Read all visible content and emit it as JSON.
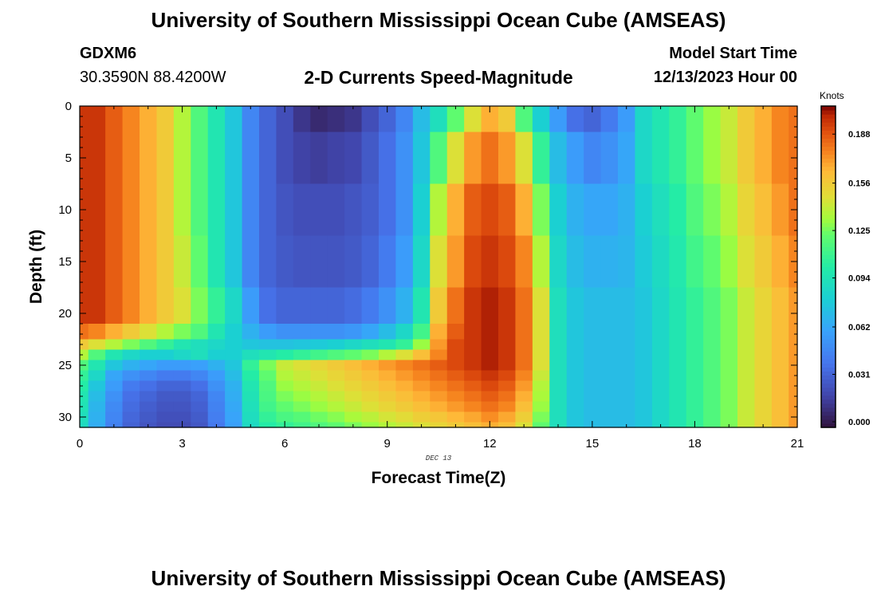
{
  "header": {
    "title": "University of Southern Mississippi Ocean Cube (AMSEAS)",
    "station_id": "GDXM6",
    "coordinates": "30.3590N  88.4200W",
    "plot_title": "2-D Currents Speed-Magnitude",
    "start_label": "Model Start Time",
    "start_value": "12/13/2023 Hour 00"
  },
  "footer": {
    "title": "University of Southern Mississippi Ocean Cube (AMSEAS)"
  },
  "chart_data": {
    "type": "heatmap",
    "title": "2-D Currents Speed-Magnitude",
    "xlabel": "Forecast Time(Z)",
    "ylabel": "Depth (ft)",
    "date_label": "DEC 13",
    "xlim": [
      0,
      21
    ],
    "ylim": [
      31,
      0
    ],
    "x_ticks": [
      "0",
      "3",
      "6",
      "9",
      "12",
      "15",
      "18",
      "21"
    ],
    "y_ticks": [
      "0",
      "5",
      "10",
      "15",
      "20",
      "25",
      "30"
    ],
    "colorbar": {
      "unit": "Knots",
      "ticks": [
        "0.000",
        "0.031",
        "0.062",
        "0.094",
        "0.125",
        "0.156",
        "0.188"
      ],
      "min": 0.0,
      "max": 0.21
    },
    "x_hours": [
      0,
      0.5,
      1,
      1.5,
      2,
      2.5,
      3,
      3.5,
      4,
      4.5,
      5,
      5.5,
      6,
      6.5,
      7,
      7.5,
      8,
      8.5,
      9,
      9.5,
      10,
      10.5,
      11,
      11.5,
      12,
      12.5,
      13,
      13.5,
      14,
      14.5,
      15,
      15.5,
      16,
      16.5,
      17,
      17.5,
      18,
      18.5,
      19,
      19.5,
      20,
      20.5,
      21
    ],
    "depth_ft": [
      0,
      5,
      10,
      15,
      20,
      22,
      23,
      24,
      25,
      26,
      27,
      28,
      29,
      30,
      31
    ],
    "speed_knots": [
      [
        0.2,
        0.2,
        0.19,
        0.18,
        0.17,
        0.16,
        0.14,
        0.12,
        0.1,
        0.08,
        0.05,
        0.035,
        0.025,
        0.015,
        0.01,
        0.012,
        0.015,
        0.025,
        0.035,
        0.05,
        0.075,
        0.095,
        0.125,
        0.15,
        0.17,
        0.16,
        0.12,
        0.085,
        0.06,
        0.04,
        0.035,
        0.045,
        0.06,
        0.09,
        0.1,
        0.11,
        0.125,
        0.135,
        0.145,
        0.16,
        0.17,
        0.18,
        0.185
      ],
      [
        0.2,
        0.2,
        0.19,
        0.18,
        0.17,
        0.16,
        0.14,
        0.12,
        0.1,
        0.08,
        0.05,
        0.035,
        0.025,
        0.02,
        0.018,
        0.02,
        0.022,
        0.03,
        0.04,
        0.055,
        0.08,
        0.12,
        0.15,
        0.175,
        0.185,
        0.175,
        0.15,
        0.11,
        0.075,
        0.06,
        0.05,
        0.055,
        0.065,
        0.09,
        0.1,
        0.11,
        0.125,
        0.135,
        0.145,
        0.16,
        0.17,
        0.18,
        0.185
      ],
      [
        0.2,
        0.2,
        0.19,
        0.18,
        0.17,
        0.16,
        0.14,
        0.12,
        0.1,
        0.08,
        0.05,
        0.035,
        0.028,
        0.025,
        0.025,
        0.025,
        0.028,
        0.032,
        0.04,
        0.055,
        0.085,
        0.14,
        0.17,
        0.19,
        0.195,
        0.19,
        0.17,
        0.13,
        0.085,
        0.07,
        0.065,
        0.065,
        0.07,
        0.085,
        0.095,
        0.105,
        0.12,
        0.13,
        0.14,
        0.155,
        0.165,
        0.175,
        0.185
      ],
      [
        0.2,
        0.2,
        0.19,
        0.18,
        0.17,
        0.16,
        0.145,
        0.125,
        0.1,
        0.08,
        0.05,
        0.035,
        0.03,
        0.028,
        0.028,
        0.028,
        0.03,
        0.035,
        0.045,
        0.06,
        0.09,
        0.15,
        0.175,
        0.195,
        0.2,
        0.195,
        0.18,
        0.14,
        0.09,
        0.075,
        0.07,
        0.07,
        0.072,
        0.082,
        0.092,
        0.102,
        0.115,
        0.125,
        0.135,
        0.15,
        0.16,
        0.17,
        0.18
      ],
      [
        0.2,
        0.2,
        0.19,
        0.18,
        0.17,
        0.16,
        0.15,
        0.13,
        0.11,
        0.09,
        0.06,
        0.04,
        0.035,
        0.035,
        0.035,
        0.035,
        0.038,
        0.045,
        0.055,
        0.07,
        0.1,
        0.16,
        0.185,
        0.2,
        0.205,
        0.2,
        0.185,
        0.15,
        0.095,
        0.08,
        0.075,
        0.075,
        0.075,
        0.08,
        0.09,
        0.1,
        0.11,
        0.12,
        0.13,
        0.145,
        0.155,
        0.165,
        0.175
      ],
      [
        0.185,
        0.18,
        0.17,
        0.16,
        0.15,
        0.14,
        0.13,
        0.12,
        0.1,
        0.085,
        0.07,
        0.06,
        0.055,
        0.055,
        0.055,
        0.055,
        0.058,
        0.065,
        0.075,
        0.09,
        0.115,
        0.17,
        0.19,
        0.2,
        0.205,
        0.2,
        0.185,
        0.15,
        0.095,
        0.08,
        0.075,
        0.075,
        0.075,
        0.08,
        0.09,
        0.1,
        0.11,
        0.12,
        0.13,
        0.145,
        0.155,
        0.165,
        0.175
      ],
      [
        0.16,
        0.15,
        0.14,
        0.13,
        0.12,
        0.11,
        0.1,
        0.095,
        0.09,
        0.085,
        0.08,
        0.078,
        0.078,
        0.08,
        0.082,
        0.085,
        0.09,
        0.095,
        0.1,
        0.11,
        0.135,
        0.175,
        0.195,
        0.2,
        0.205,
        0.2,
        0.185,
        0.15,
        0.095,
        0.08,
        0.075,
        0.075,
        0.075,
        0.08,
        0.09,
        0.1,
        0.11,
        0.12,
        0.13,
        0.145,
        0.155,
        0.165,
        0.175
      ],
      [
        0.14,
        0.12,
        0.1,
        0.09,
        0.085,
        0.085,
        0.09,
        0.095,
        0.085,
        0.085,
        0.095,
        0.1,
        0.105,
        0.11,
        0.115,
        0.12,
        0.125,
        0.13,
        0.14,
        0.15,
        0.165,
        0.18,
        0.195,
        0.2,
        0.205,
        0.2,
        0.185,
        0.15,
        0.095,
        0.08,
        0.075,
        0.075,
        0.075,
        0.08,
        0.09,
        0.1,
        0.11,
        0.12,
        0.13,
        0.145,
        0.155,
        0.165,
        0.175
      ],
      [
        0.12,
        0.1,
        0.08,
        0.07,
        0.065,
        0.06,
        0.06,
        0.062,
        0.07,
        0.08,
        0.11,
        0.13,
        0.145,
        0.15,
        0.155,
        0.16,
        0.165,
        0.17,
        0.175,
        0.18,
        0.185,
        0.19,
        0.195,
        0.2,
        0.205,
        0.2,
        0.185,
        0.15,
        0.095,
        0.08,
        0.075,
        0.075,
        0.075,
        0.08,
        0.09,
        0.1,
        0.11,
        0.12,
        0.13,
        0.145,
        0.155,
        0.165,
        0.175
      ],
      [
        0.11,
        0.09,
        0.065,
        0.055,
        0.05,
        0.045,
        0.045,
        0.05,
        0.06,
        0.075,
        0.105,
        0.125,
        0.14,
        0.145,
        0.15,
        0.155,
        0.16,
        0.165,
        0.17,
        0.175,
        0.18,
        0.185,
        0.19,
        0.195,
        0.2,
        0.195,
        0.18,
        0.145,
        0.095,
        0.08,
        0.075,
        0.075,
        0.075,
        0.08,
        0.09,
        0.1,
        0.11,
        0.12,
        0.13,
        0.145,
        0.155,
        0.165,
        0.175
      ],
      [
        0.105,
        0.08,
        0.06,
        0.045,
        0.04,
        0.035,
        0.035,
        0.04,
        0.055,
        0.07,
        0.1,
        0.12,
        0.135,
        0.14,
        0.145,
        0.15,
        0.155,
        0.16,
        0.165,
        0.17,
        0.175,
        0.18,
        0.185,
        0.19,
        0.195,
        0.19,
        0.175,
        0.14,
        0.095,
        0.08,
        0.075,
        0.075,
        0.075,
        0.08,
        0.09,
        0.1,
        0.11,
        0.12,
        0.13,
        0.145,
        0.155,
        0.165,
        0.175
      ],
      [
        0.1,
        0.075,
        0.055,
        0.04,
        0.035,
        0.03,
        0.03,
        0.035,
        0.05,
        0.068,
        0.098,
        0.118,
        0.13,
        0.135,
        0.14,
        0.145,
        0.15,
        0.155,
        0.16,
        0.165,
        0.17,
        0.175,
        0.18,
        0.185,
        0.19,
        0.185,
        0.17,
        0.138,
        0.095,
        0.08,
        0.075,
        0.075,
        0.075,
        0.08,
        0.09,
        0.1,
        0.11,
        0.12,
        0.13,
        0.145,
        0.155,
        0.165,
        0.175
      ],
      [
        0.098,
        0.072,
        0.052,
        0.038,
        0.032,
        0.028,
        0.028,
        0.033,
        0.048,
        0.066,
        0.096,
        0.115,
        0.125,
        0.13,
        0.135,
        0.14,
        0.145,
        0.15,
        0.155,
        0.16,
        0.165,
        0.17,
        0.175,
        0.18,
        0.185,
        0.18,
        0.165,
        0.135,
        0.095,
        0.08,
        0.075,
        0.075,
        0.075,
        0.08,
        0.09,
        0.1,
        0.11,
        0.12,
        0.13,
        0.145,
        0.155,
        0.165,
        0.175
      ],
      [
        0.095,
        0.07,
        0.05,
        0.036,
        0.03,
        0.026,
        0.026,
        0.031,
        0.046,
        0.064,
        0.094,
        0.11,
        0.118,
        0.122,
        0.128,
        0.132,
        0.138,
        0.142,
        0.148,
        0.152,
        0.158,
        0.162,
        0.168,
        0.172,
        0.178,
        0.172,
        0.158,
        0.13,
        0.095,
        0.08,
        0.075,
        0.075,
        0.075,
        0.08,
        0.09,
        0.1,
        0.11,
        0.12,
        0.13,
        0.145,
        0.155,
        0.165,
        0.175
      ],
      [
        0.093,
        0.068,
        0.048,
        0.034,
        0.028,
        0.024,
        0.024,
        0.029,
        0.044,
        0.062,
        0.092,
        0.105,
        0.11,
        0.115,
        0.12,
        0.125,
        0.13,
        0.135,
        0.14,
        0.145,
        0.15,
        0.155,
        0.16,
        0.165,
        0.17,
        0.165,
        0.15,
        0.125,
        0.095,
        0.08,
        0.075,
        0.075,
        0.075,
        0.08,
        0.09,
        0.1,
        0.11,
        0.12,
        0.13,
        0.145,
        0.155,
        0.165,
        0.175
      ]
    ]
  }
}
